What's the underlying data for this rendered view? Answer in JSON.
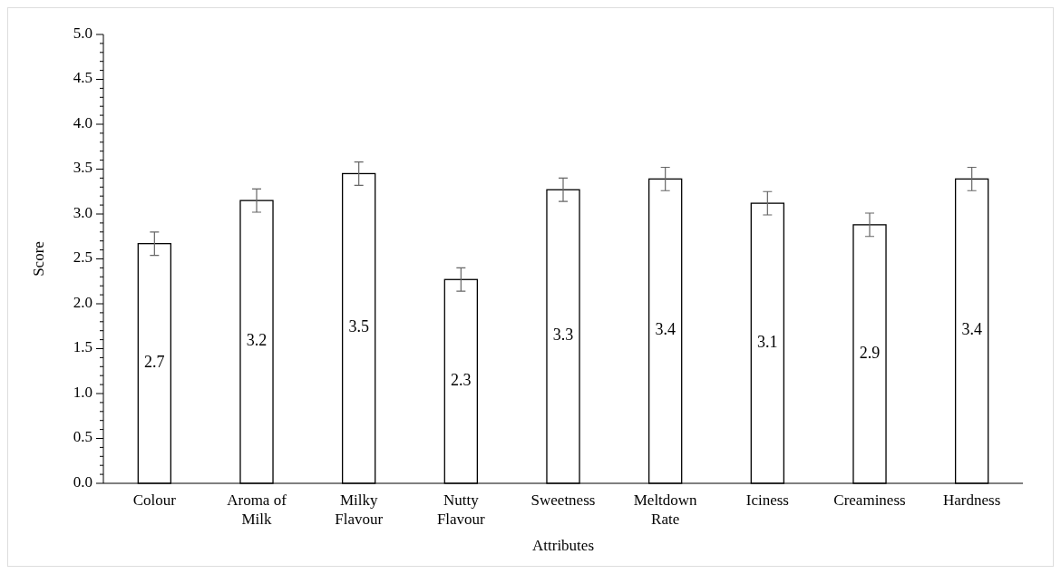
{
  "chart_data": {
    "type": "bar",
    "xlabel": "Attributes",
    "ylabel": "Score",
    "categories": [
      "Colour",
      "Aroma of\nMilk",
      "Milky\nFlavour",
      "Nutty\nFlavour",
      "Sweetness",
      "Meltdown\nRate",
      "Iciness",
      "Creaminess",
      "Hardness"
    ],
    "values": [
      2.67,
      3.15,
      3.45,
      2.27,
      3.27,
      3.39,
      3.12,
      2.88,
      3.39
    ],
    "errors": [
      0.13,
      0.13,
      0.13,
      0.13,
      0.13,
      0.13,
      0.13,
      0.13,
      0.13
    ],
    "value_labels": [
      "2.7",
      "3.2",
      "3.5",
      "2.3",
      "3.3",
      "3.4",
      "3.1",
      "2.9",
      "3.4"
    ],
    "color": "#ffffff",
    "ylim": [
      0,
      5
    ],
    "yticks": [
      {
        "value": 0,
        "label": "0.0"
      },
      {
        "value": 0.1,
        "label": null
      },
      {
        "value": 0.2,
        "label": null
      },
      {
        "value": 0.3,
        "label": null
      },
      {
        "value": 0.4,
        "label": null
      },
      {
        "value": 0.5,
        "label": "0.5"
      },
      {
        "value": 0.6,
        "label": null
      },
      {
        "value": 0.7,
        "label": null
      },
      {
        "value": 0.8,
        "label": null
      },
      {
        "value": 0.9,
        "label": null
      },
      {
        "value": 1,
        "label": "1.0"
      },
      {
        "value": 1.1,
        "label": null
      },
      {
        "value": 1.2,
        "label": null
      },
      {
        "value": 1.3,
        "label": null
      },
      {
        "value": 1.4,
        "label": null
      },
      {
        "value": 1.5,
        "label": "1.5"
      },
      {
        "value": 1.6,
        "label": null
      },
      {
        "value": 1.7,
        "label": null
      },
      {
        "value": 1.8,
        "label": null
      },
      {
        "value": 1.9,
        "label": null
      },
      {
        "value": 2,
        "label": "2.0"
      },
      {
        "value": 2.1,
        "label": null
      },
      {
        "value": 2.2,
        "label": null
      },
      {
        "value": 2.3,
        "label": null
      },
      {
        "value": 2.4,
        "label": null
      },
      {
        "value": 2.5,
        "label": "2.5"
      },
      {
        "value": 2.6,
        "label": null
      },
      {
        "value": 2.7,
        "label": null
      },
      {
        "value": 2.8,
        "label": null
      },
      {
        "value": 2.9,
        "label": null
      },
      {
        "value": 3,
        "label": "3.0"
      },
      {
        "value": 3.1,
        "label": null
      },
      {
        "value": 3.2,
        "label": null
      },
      {
        "value": 3.3,
        "label": null
      },
      {
        "value": 3.4,
        "label": null
      },
      {
        "value": 3.5,
        "label": "3.5"
      },
      {
        "value": 3.6,
        "label": null
      },
      {
        "value": 3.7,
        "label": null
      },
      {
        "value": 3.8,
        "label": null
      },
      {
        "value": 3.9,
        "label": null
      },
      {
        "value": 4,
        "label": "4.0"
      },
      {
        "value": 4.1,
        "label": null
      },
      {
        "value": 4.2,
        "label": null
      },
      {
        "value": 4.3,
        "label": null
      },
      {
        "value": 4.4,
        "label": null
      },
      {
        "value": 4.5,
        "label": "4.5"
      },
      {
        "value": 4.6,
        "label": null
      },
      {
        "value": 4.7,
        "label": null
      },
      {
        "value": 4.8,
        "label": null
      },
      {
        "value": 4.9,
        "label": null
      },
      {
        "value": 5,
        "label": "5.0"
      }
    ],
    "grid": false
  }
}
